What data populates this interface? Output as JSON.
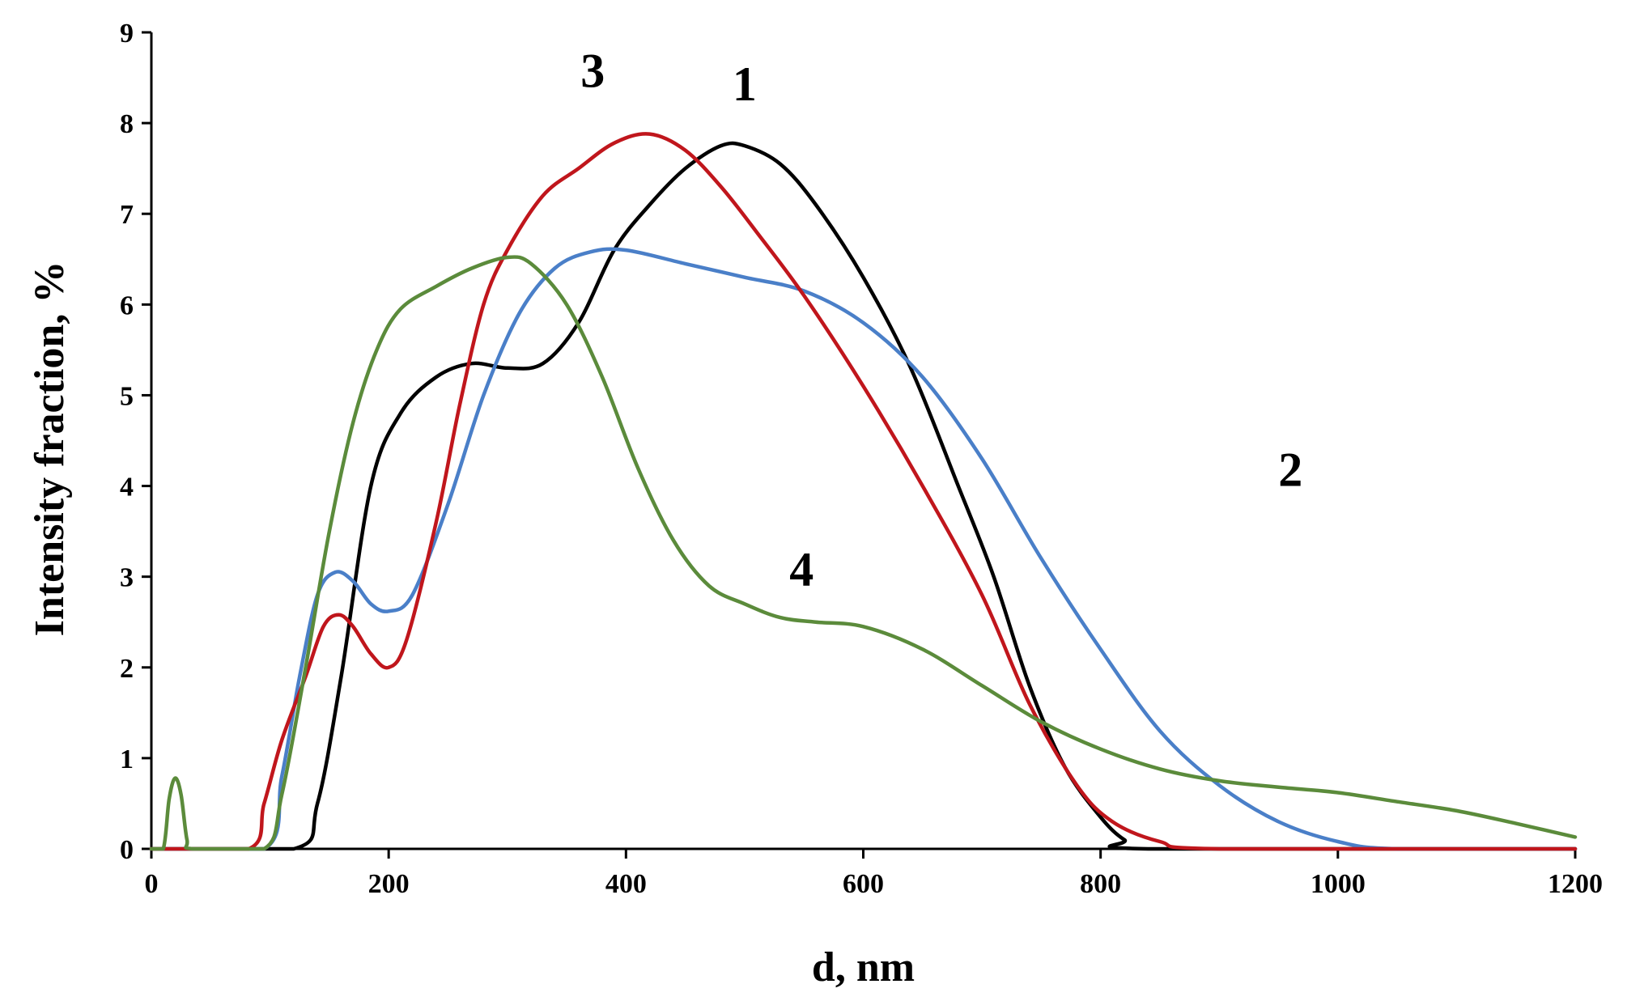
{
  "chart_data": {
    "type": "line",
    "title": "",
    "xlabel": "d, nm",
    "ylabel": "Intensity fraction, %",
    "xlim": [
      0,
      1200
    ],
    "ylim": [
      0,
      9
    ],
    "xticks": [
      0,
      200,
      400,
      600,
      800,
      1000,
      1200
    ],
    "yticks": [
      0,
      1,
      2,
      3,
      4,
      5,
      6,
      7,
      8,
      9
    ],
    "grid": false,
    "series": [
      {
        "name": "1",
        "color": "#000000",
        "label_at": [
          500,
          8.25
        ],
        "points": [
          [
            0,
            0
          ],
          [
            120,
            0
          ],
          [
            140,
            0.5
          ],
          [
            160,
            1.9
          ],
          [
            185,
            4.0
          ],
          [
            210,
            4.8
          ],
          [
            240,
            5.2
          ],
          [
            270,
            5.35
          ],
          [
            300,
            5.3
          ],
          [
            330,
            5.35
          ],
          [
            360,
            5.8
          ],
          [
            390,
            6.6
          ],
          [
            420,
            7.1
          ],
          [
            450,
            7.5
          ],
          [
            480,
            7.75
          ],
          [
            500,
            7.75
          ],
          [
            530,
            7.55
          ],
          [
            560,
            7.1
          ],
          [
            600,
            6.3
          ],
          [
            640,
            5.3
          ],
          [
            680,
            4.0
          ],
          [
            710,
            3.0
          ],
          [
            740,
            1.8
          ],
          [
            770,
            0.9
          ],
          [
            800,
            0.35
          ],
          [
            820,
            0.1
          ],
          [
            840,
            0
          ],
          [
            1200,
            0
          ]
        ]
      },
      {
        "name": "2",
        "color": "#4a7fc8",
        "label_at": [
          960,
          4.0
        ],
        "points": [
          [
            0,
            0
          ],
          [
            95,
            0
          ],
          [
            110,
            0.8
          ],
          [
            125,
            1.9
          ],
          [
            140,
            2.8
          ],
          [
            155,
            3.05
          ],
          [
            170,
            2.95
          ],
          [
            185,
            2.7
          ],
          [
            200,
            2.62
          ],
          [
            220,
            2.8
          ],
          [
            250,
            3.8
          ],
          [
            280,
            5.0
          ],
          [
            310,
            5.9
          ],
          [
            340,
            6.4
          ],
          [
            370,
            6.58
          ],
          [
            400,
            6.6
          ],
          [
            450,
            6.45
          ],
          [
            500,
            6.3
          ],
          [
            550,
            6.15
          ],
          [
            600,
            5.8
          ],
          [
            650,
            5.2
          ],
          [
            700,
            4.3
          ],
          [
            750,
            3.2
          ],
          [
            800,
            2.2
          ],
          [
            850,
            1.3
          ],
          [
            900,
            0.7
          ],
          [
            950,
            0.3
          ],
          [
            1000,
            0.08
          ],
          [
            1050,
            0
          ],
          [
            1200,
            0
          ]
        ]
      },
      {
        "name": "3",
        "color": "#c0161c",
        "label_at": [
          372,
          8.4
        ],
        "points": [
          [
            0,
            0
          ],
          [
            82,
            0
          ],
          [
            95,
            0.5
          ],
          [
            110,
            1.2
          ],
          [
            130,
            1.9
          ],
          [
            145,
            2.45
          ],
          [
            158,
            2.58
          ],
          [
            170,
            2.45
          ],
          [
            185,
            2.15
          ],
          [
            200,
            2.0
          ],
          [
            215,
            2.3
          ],
          [
            240,
            3.6
          ],
          [
            260,
            4.9
          ],
          [
            280,
            6.0
          ],
          [
            300,
            6.6
          ],
          [
            330,
            7.2
          ],
          [
            360,
            7.5
          ],
          [
            390,
            7.78
          ],
          [
            420,
            7.88
          ],
          [
            450,
            7.7
          ],
          [
            480,
            7.3
          ],
          [
            510,
            6.8
          ],
          [
            550,
            6.1
          ],
          [
            600,
            5.1
          ],
          [
            650,
            4.0
          ],
          [
            700,
            2.8
          ],
          [
            740,
            1.6
          ],
          [
            780,
            0.7
          ],
          [
            810,
            0.3
          ],
          [
            850,
            0.08
          ],
          [
            900,
            0
          ],
          [
            1200,
            0
          ]
        ]
      },
      {
        "name": "4",
        "color": "#5b8b3b",
        "label_at": [
          548,
          2.9
        ],
        "points": [
          [
            0,
            0
          ],
          [
            10,
            0
          ],
          [
            15,
            0.55
          ],
          [
            20,
            0.78
          ],
          [
            25,
            0.6
          ],
          [
            30,
            0.1
          ],
          [
            35,
            0
          ],
          [
            95,
            0
          ],
          [
            110,
            0.6
          ],
          [
            130,
            2.0
          ],
          [
            150,
            3.5
          ],
          [
            170,
            4.7
          ],
          [
            190,
            5.5
          ],
          [
            210,
            5.95
          ],
          [
            240,
            6.2
          ],
          [
            270,
            6.4
          ],
          [
            300,
            6.52
          ],
          [
            320,
            6.45
          ],
          [
            350,
            6.0
          ],
          [
            380,
            5.2
          ],
          [
            410,
            4.2
          ],
          [
            440,
            3.4
          ],
          [
            470,
            2.9
          ],
          [
            500,
            2.7
          ],
          [
            530,
            2.55
          ],
          [
            560,
            2.5
          ],
          [
            600,
            2.45
          ],
          [
            650,
            2.2
          ],
          [
            700,
            1.8
          ],
          [
            750,
            1.4
          ],
          [
            800,
            1.1
          ],
          [
            850,
            0.88
          ],
          [
            900,
            0.75
          ],
          [
            950,
            0.68
          ],
          [
            1000,
            0.62
          ],
          [
            1050,
            0.52
          ],
          [
            1100,
            0.42
          ],
          [
            1150,
            0.28
          ],
          [
            1200,
            0.13
          ]
        ]
      }
    ]
  }
}
